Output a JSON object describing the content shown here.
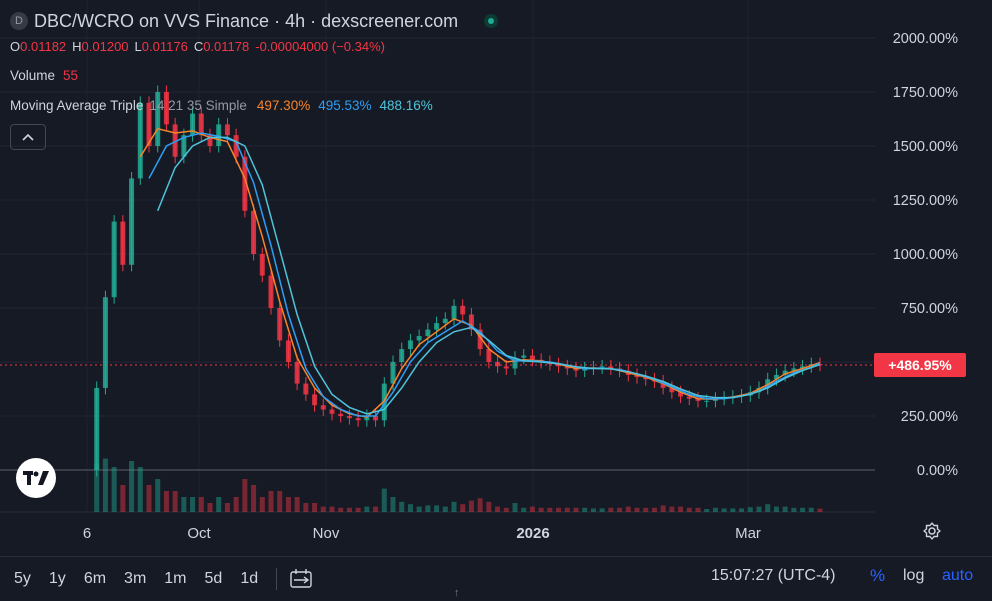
{
  "header": {
    "symbol_badge": "D",
    "title": "DBC/WCRO on VVS Finance · 4h · dexscreener.com",
    "ohlc": {
      "o_key": "O",
      "o_val": "0.01182",
      "h_key": "H",
      "h_val": "0.01200",
      "l_key": "L",
      "l_val": "0.01176",
      "c_key": "C",
      "c_val": "0.01178",
      "change": "-0.00004000 (−0.34%)"
    },
    "volume_label": "Volume",
    "volume_value": "55",
    "ma_label": "Moving Average Triple",
    "ma_params": "14 21 35 Simple",
    "ma_values": [
      "497.30%",
      "495.53%",
      "488.16%"
    ],
    "collapse_icon": "chevron-up-icon"
  },
  "price_tag": "+486.95%",
  "bottom_bar": {
    "ranges": [
      "5y",
      "1y",
      "6m",
      "3m",
      "1m",
      "5d",
      "1d"
    ],
    "date_range_icon": "calendar-range-icon",
    "time": "15:07:27 (UTC-4)",
    "percent": "%",
    "log": "log",
    "auto": "auto"
  },
  "colors": {
    "background": "#161a25",
    "up": "#22ab94",
    "down": "#f23645",
    "ma1": "#f7842a",
    "ma2": "#2d9ef5",
    "ma3": "#4fc3d9",
    "accent": "#2962ff"
  },
  "chart_data": {
    "type": "line",
    "y_unit": "%",
    "y_ticks": [
      "2000.00%",
      "1750.00%",
      "1500.00%",
      "1250.00%",
      "1000.00%",
      "750.00%",
      "500.00%",
      "250.00%",
      "0.00%"
    ],
    "ylim": [
      -200,
      2150
    ],
    "x_ticks": [
      "6",
      "Oct",
      "Nov",
      "2026",
      "Mar"
    ],
    "grid": true,
    "current_value": 486.95,
    "series": [
      {
        "name": "price",
        "points": [
          [
            0,
            0
          ],
          [
            1,
            380
          ],
          [
            2,
            800
          ],
          [
            3,
            1150
          ],
          [
            4,
            950
          ],
          [
            5,
            1350
          ],
          [
            6,
            1700
          ],
          [
            7,
            1500
          ],
          [
            8,
            1750
          ],
          [
            9,
            1600
          ],
          [
            10,
            1450
          ],
          [
            11,
            1550
          ],
          [
            12,
            1650
          ],
          [
            13,
            1550
          ],
          [
            14,
            1500
          ],
          [
            15,
            1600
          ],
          [
            16,
            1550
          ],
          [
            17,
            1450
          ],
          [
            18,
            1200
          ],
          [
            19,
            1000
          ],
          [
            20,
            900
          ],
          [
            21,
            750
          ],
          [
            22,
            600
          ],
          [
            23,
            500
          ],
          [
            24,
            400
          ],
          [
            25,
            350
          ],
          [
            26,
            300
          ],
          [
            27,
            280
          ],
          [
            28,
            260
          ],
          [
            29,
            250
          ],
          [
            30,
            240
          ],
          [
            31,
            230
          ],
          [
            32,
            250
          ],
          [
            33,
            230
          ],
          [
            34,
            400
          ],
          [
            35,
            500
          ],
          [
            36,
            560
          ],
          [
            37,
            600
          ],
          [
            38,
            620
          ],
          [
            39,
            650
          ],
          [
            40,
            680
          ],
          [
            41,
            700
          ],
          [
            42,
            760
          ],
          [
            43,
            720
          ],
          [
            44,
            650
          ],
          [
            45,
            560
          ],
          [
            46,
            500
          ],
          [
            47,
            480
          ],
          [
            48,
            470
          ],
          [
            49,
            520
          ],
          [
            50,
            530
          ],
          [
            51,
            510
          ],
          [
            52,
            500
          ],
          [
            53,
            490
          ],
          [
            54,
            480
          ],
          [
            55,
            470
          ],
          [
            56,
            460
          ],
          [
            57,
            470
          ],
          [
            58,
            475
          ],
          [
            59,
            480
          ],
          [
            60,
            470
          ],
          [
            61,
            460
          ],
          [
            62,
            440
          ],
          [
            63,
            430
          ],
          [
            64,
            420
          ],
          [
            65,
            410
          ],
          [
            66,
            380
          ],
          [
            67,
            360
          ],
          [
            68,
            340
          ],
          [
            69,
            330
          ],
          [
            70,
            320
          ],
          [
            71,
            320
          ],
          [
            72,
            330
          ],
          [
            73,
            335
          ],
          [
            74,
            340
          ],
          [
            75,
            345
          ],
          [
            76,
            360
          ],
          [
            77,
            380
          ],
          [
            78,
            420
          ],
          [
            79,
            440
          ],
          [
            80,
            460
          ],
          [
            81,
            470
          ],
          [
            82,
            480
          ],
          [
            83,
            490
          ],
          [
            84,
            487
          ]
        ]
      },
      {
        "name": "ma14",
        "points": [
          [
            6,
            1450
          ],
          [
            8,
            1580
          ],
          [
            10,
            1560
          ],
          [
            12,
            1570
          ],
          [
            14,
            1540
          ],
          [
            16,
            1520
          ],
          [
            18,
            1350
          ],
          [
            20,
            1080
          ],
          [
            22,
            780
          ],
          [
            24,
            520
          ],
          [
            26,
            380
          ],
          [
            28,
            300
          ],
          [
            30,
            260
          ],
          [
            32,
            245
          ],
          [
            34,
            320
          ],
          [
            36,
            470
          ],
          [
            38,
            580
          ],
          [
            40,
            640
          ],
          [
            42,
            700
          ],
          [
            44,
            670
          ],
          [
            46,
            560
          ],
          [
            48,
            500
          ],
          [
            50,
            510
          ],
          [
            52,
            505
          ],
          [
            54,
            490
          ],
          [
            56,
            470
          ],
          [
            58,
            472
          ],
          [
            60,
            470
          ],
          [
            62,
            450
          ],
          [
            64,
            430
          ],
          [
            66,
            400
          ],
          [
            68,
            360
          ],
          [
            70,
            330
          ],
          [
            72,
            328
          ],
          [
            74,
            338
          ],
          [
            76,
            355
          ],
          [
            78,
            395
          ],
          [
            80,
            445
          ],
          [
            82,
            470
          ],
          [
            84,
            497
          ]
        ]
      },
      {
        "name": "ma21",
        "points": [
          [
            7,
            1350
          ],
          [
            9,
            1500
          ],
          [
            11,
            1540
          ],
          [
            13,
            1560
          ],
          [
            15,
            1545
          ],
          [
            17,
            1520
          ],
          [
            19,
            1330
          ],
          [
            21,
            1040
          ],
          [
            23,
            720
          ],
          [
            25,
            470
          ],
          [
            27,
            340
          ],
          [
            29,
            280
          ],
          [
            31,
            250
          ],
          [
            33,
            250
          ],
          [
            35,
            360
          ],
          [
            37,
            500
          ],
          [
            39,
            590
          ],
          [
            41,
            640
          ],
          [
            43,
            690
          ],
          [
            45,
            640
          ],
          [
            47,
            550
          ],
          [
            49,
            505
          ],
          [
            51,
            505
          ],
          [
            53,
            500
          ],
          [
            55,
            485
          ],
          [
            57,
            468
          ],
          [
            59,
            472
          ],
          [
            61,
            465
          ],
          [
            63,
            445
          ],
          [
            65,
            420
          ],
          [
            67,
            385
          ],
          [
            69,
            350
          ],
          [
            71,
            330
          ],
          [
            73,
            330
          ],
          [
            75,
            342
          ],
          [
            77,
            365
          ],
          [
            79,
            410
          ],
          [
            81,
            450
          ],
          [
            83,
            475
          ],
          [
            84,
            495
          ]
        ]
      },
      {
        "name": "ma35",
        "points": [
          [
            8,
            1200
          ],
          [
            10,
            1400
          ],
          [
            12,
            1500
          ],
          [
            14,
            1540
          ],
          [
            16,
            1540
          ],
          [
            18,
            1500
          ],
          [
            20,
            1320
          ],
          [
            22,
            1020
          ],
          [
            24,
            720
          ],
          [
            26,
            480
          ],
          [
            28,
            350
          ],
          [
            30,
            290
          ],
          [
            32,
            260
          ],
          [
            34,
            280
          ],
          [
            36,
            380
          ],
          [
            38,
            500
          ],
          [
            40,
            590
          ],
          [
            42,
            640
          ],
          [
            44,
            660
          ],
          [
            46,
            600
          ],
          [
            48,
            530
          ],
          [
            50,
            505
          ],
          [
            52,
            500
          ],
          [
            54,
            492
          ],
          [
            56,
            478
          ],
          [
            58,
            470
          ],
          [
            60,
            468
          ],
          [
            62,
            455
          ],
          [
            64,
            435
          ],
          [
            66,
            410
          ],
          [
            68,
            375
          ],
          [
            70,
            345
          ],
          [
            72,
            335
          ],
          [
            74,
            335
          ],
          [
            76,
            350
          ],
          [
            78,
            380
          ],
          [
            80,
            425
          ],
          [
            82,
            460
          ],
          [
            84,
            488
          ]
        ]
      }
    ]
  }
}
